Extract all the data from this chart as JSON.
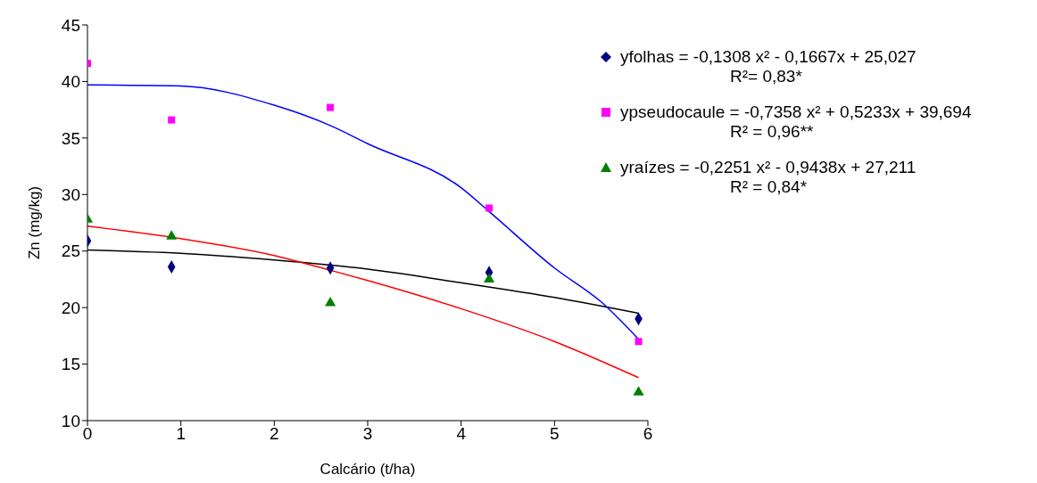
{
  "chart_data": {
    "type": "scatter",
    "xlabel": "Calcário (t/ha)",
    "ylabel": "Zn (mg/kg)",
    "x": [
      0,
      0.9,
      2.6,
      4.3,
      5.9
    ],
    "series": [
      {
        "name": "yfolhas = -0,1308 x² - 0,1667x + 25,027",
        "color": "#000080",
        "marker": "diamond",
        "values": [
          25.9,
          23.6,
          23.5,
          23.1,
          19.0
        ]
      },
      {
        "name": "ypseudocaule = -0,7358 x² + 0,5233x + 39,694",
        "color": "#ff00ff",
        "marker": "square",
        "values": [
          41.6,
          36.6,
          37.7,
          28.8,
          17.0
        ]
      },
      {
        "name": "yraízes =  -0,2251 x² - 0,9438x + 27,211",
        "color": "#008000",
        "marker": "triangle",
        "values": [
          27.8,
          26.3,
          20.4,
          22.5,
          12.5
        ]
      },
      {
        "type": "line",
        "color": "#000000",
        "x": [
          0,
          1,
          2,
          3,
          4,
          5,
          5.9
        ],
        "values": [
          25.1,
          24.8,
          24.2,
          23.4,
          22.2,
          20.9,
          19.5
        ]
      },
      {
        "type": "line",
        "color": "#0000ff",
        "x": [
          0,
          1,
          2,
          2.6,
          3,
          4,
          4.3,
          5,
          5.5,
          5.9
        ],
        "values": [
          39.7,
          39.6,
          37.9,
          36.1,
          34.5,
          30.6,
          28.5,
          23.5,
          20.5,
          17.2
        ]
      },
      {
        "type": "line",
        "color": "#ff0000",
        "x": [
          0,
          1,
          2,
          2.6,
          3,
          4,
          5,
          5.9
        ],
        "values": [
          27.2,
          26.1,
          24.6,
          23.3,
          22.4,
          19.9,
          17.0,
          13.8
        ]
      }
    ],
    "annotations": [
      "R²= 0,83*",
      "R² = 0,96**",
      "R² = 0,84*"
    ],
    "xlim": [
      0,
      6
    ],
    "xticks": [
      0,
      1,
      2,
      3,
      4,
      5,
      6
    ],
    "ylim": [
      10,
      45
    ],
    "yticks": [
      10,
      15,
      20,
      25,
      30,
      35,
      40,
      45
    ],
    "grid": false,
    "legend": "right"
  }
}
